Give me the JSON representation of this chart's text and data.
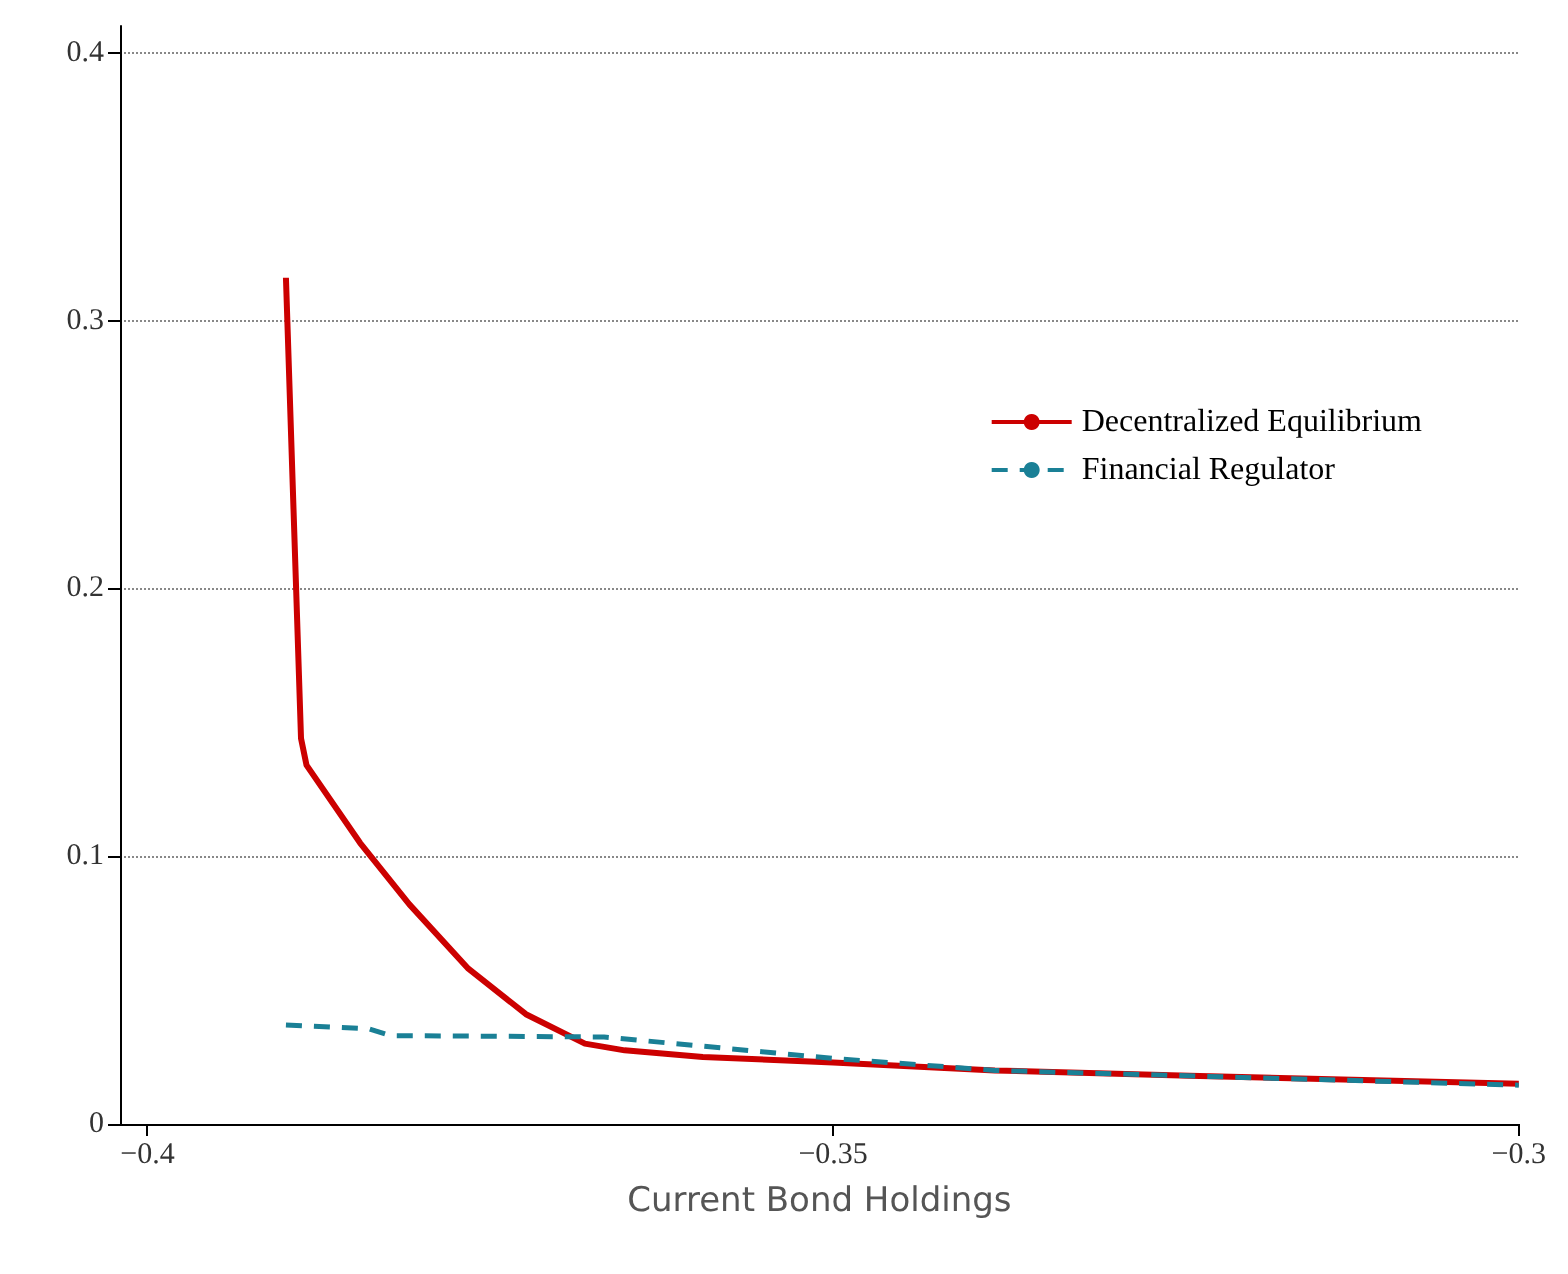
{
  "chart_data": {
    "type": "line",
    "xlabel": "Current Bond Holdings",
    "xlim": [
      -0.402,
      -0.3
    ],
    "xticks": [
      {
        "value": -0.4,
        "label": "−0.4"
      },
      {
        "value": -0.35,
        "label": "−0.35"
      },
      {
        "value": -0.3,
        "label": "−0.3"
      }
    ],
    "ylim": [
      0,
      0.41
    ],
    "yticks": [
      0,
      0.1,
      0.2,
      0.3,
      0.4
    ],
    "grid": "y",
    "legend": "top right",
    "marker": "none",
    "series": [
      {
        "name": "Decentralized Equilibrium",
        "color": "#cc0000",
        "line_style": "solid",
        "x": [
          -0.3899,
          -0.3888,
          -0.3884,
          -0.3845,
          -0.3809,
          -0.3766,
          -0.3724,
          -0.3681,
          -0.3652,
          -0.3595,
          -0.35,
          -0.3382,
          -0.324,
          -0.3
        ],
        "values": [
          0.316,
          0.144,
          0.134,
          0.105,
          0.082,
          0.058,
          0.041,
          0.03,
          0.0275,
          0.025,
          0.023,
          0.02,
          0.018,
          0.015
        ]
      },
      {
        "name": "Financial Regulator",
        "color": "#1a8096",
        "line_style": "dashed",
        "x": [
          -0.3899,
          -0.3838,
          -0.3823,
          -0.3667,
          -0.35,
          -0.3382,
          -0.3
        ],
        "values": [
          0.037,
          0.0355,
          0.033,
          0.0325,
          0.0245,
          0.02,
          0.0145
        ]
      }
    ]
  }
}
